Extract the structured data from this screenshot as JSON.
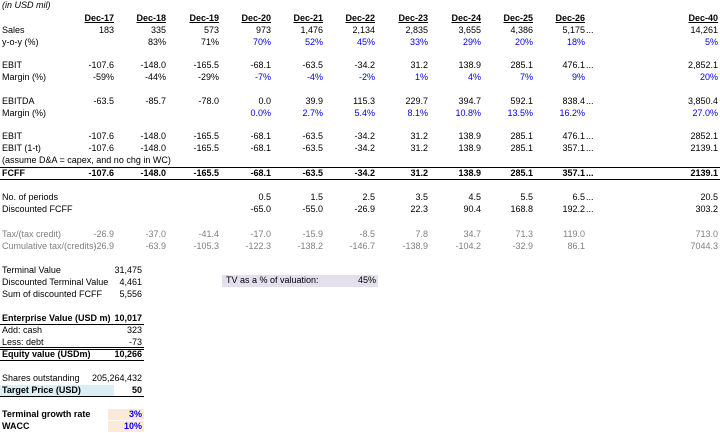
{
  "caption": "(in USD mil)",
  "headers": [
    "Dec-17",
    "Dec-18",
    "Dec-19",
    "Dec-20",
    "Dec-21",
    "Dec-22",
    "Dec-23",
    "Dec-24",
    "Dec-25",
    "Dec-26",
    "Dec-40"
  ],
  "ellipsis": "...",
  "rows": {
    "sales": {
      "label": "Sales",
      "values": [
        "183",
        "335",
        "573",
        "973",
        "1,476",
        "2,134",
        "2,835",
        "3,655",
        "4,386",
        "5,175",
        "14,261"
      ]
    },
    "yoy": {
      "label": "y-o-y (%)",
      "values": [
        "",
        "83%",
        "71%",
        "70%",
        "52%",
        "45%",
        "33%",
        "29%",
        "20%",
        "18%",
        "5%"
      ]
    },
    "ebit1": {
      "label": "EBIT",
      "values": [
        "-107.6",
        "-148.0",
        "-165.5",
        "-68.1",
        "-63.5",
        "-34.2",
        "31.2",
        "138.9",
        "285.1",
        "476.1",
        "2,852.1"
      ]
    },
    "margin1": {
      "label": "Margin (%)",
      "values": [
        "-59%",
        "-44%",
        "-29%",
        "-7%",
        "-4%",
        "-2%",
        "1%",
        "4%",
        "7%",
        "9%",
        "20%"
      ]
    },
    "ebitda": {
      "label": "EBITDA",
      "values": [
        "-63.5",
        "-85.7",
        "-78.0",
        "0.0",
        "39.9",
        "115.3",
        "229.7",
        "394.7",
        "592.1",
        "838.4",
        "3,850.4"
      ]
    },
    "margin2": {
      "label": "Margin (%)",
      "values": [
        "",
        "",
        "",
        "0.0%",
        "2.7%",
        "5.4%",
        "8.1%",
        "10.8%",
        "13.5%",
        "16.2%",
        "27.0%"
      ]
    },
    "ebit2": {
      "label": "EBIT",
      "values": [
        "-107.6",
        "-148.0",
        "-165.5",
        "-68.1",
        "-63.5",
        "-34.2",
        "31.2",
        "138.9",
        "285.1",
        "476.1",
        "2852.1"
      ]
    },
    "ebit_1t": {
      "label": "EBIT (1-t)",
      "values": [
        "-107.6",
        "-148.0",
        "-165.5",
        "-68.1",
        "-63.5",
        "-34.2",
        "31.2",
        "138.9",
        "285.1",
        "357.1",
        "2139.1"
      ]
    },
    "assume": {
      "label": "(assume D&A = capex, and no chg in WC)"
    },
    "fcff": {
      "label": "FCFF",
      "values": [
        "-107.6",
        "-148.0",
        "-165.5",
        "-68.1",
        "-63.5",
        "-34.2",
        "31.2",
        "138.9",
        "285.1",
        "357.1",
        "2139.1"
      ]
    },
    "periods": {
      "label": "No. of periods",
      "values": [
        "",
        "",
        "",
        "0.5",
        "1.5",
        "2.5",
        "3.5",
        "4.5",
        "5.5",
        "6.5",
        "20.5"
      ]
    },
    "disc_fcff": {
      "label": "Discounted FCFF",
      "values": [
        "",
        "",
        "",
        "-65.0",
        "-55.0",
        "-26.9",
        "22.3",
        "90.4",
        "168.8",
        "192.2",
        "303.2"
      ]
    },
    "tax": {
      "label": "Tax/(tax credit)",
      "values": [
        "-26.9",
        "-37.0",
        "-41.4",
        "-17.0",
        "-15.9",
        "-8.5",
        "7.8",
        "34.7",
        "71.3",
        "119.0",
        "713.0"
      ]
    },
    "cum_tax": {
      "label": "Cumulative tax/(credits)",
      "values": [
        "-26.9",
        "-63.9",
        "-105.3",
        "-122.3",
        "-138.2",
        "-146.7",
        "-138.9",
        "-104.2",
        "-32.9",
        "86.1",
        "7044.3"
      ]
    }
  },
  "valuation": {
    "terminal_value": {
      "label": "Terminal Value",
      "value": "31,475"
    },
    "disc_tv": {
      "label": "Discounted Terminal Value",
      "value": "4,461"
    },
    "sum_disc": {
      "label": "Sum of discounted FCFF",
      "value": "5,556"
    },
    "ev": {
      "label": "Enterprise Value (USD m)",
      "value": "10,017"
    },
    "cash": {
      "label": "Add: cash",
      "value": "323"
    },
    "debt": {
      "label": "Less: debt",
      "value": "-73"
    },
    "equity": {
      "label": "Equity value (USDm)",
      "value": "10,266"
    },
    "shares": {
      "label": "Shares outstanding",
      "value": "205,264,432"
    },
    "target": {
      "label": "Target Price (USD)",
      "value": "50"
    },
    "tgr": {
      "label": "Terminal growth rate",
      "value": "3%"
    },
    "wacc": {
      "label": "WACC",
      "value": "10%"
    }
  },
  "tv_pct": {
    "label": "TV as a % of valuation:",
    "value": "45%"
  },
  "colors": {
    "blue": "#0000ee",
    "grey": "#808080",
    "target_fill": "#daeef3",
    "input_fill": "#fde9d9",
    "tv_fill": "#e4dfec"
  }
}
